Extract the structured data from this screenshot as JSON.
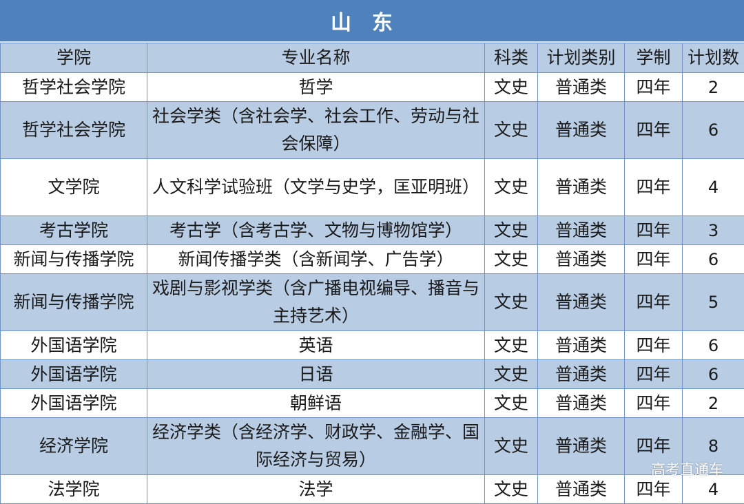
{
  "title": "山东",
  "headers": [
    "学院",
    "专业名称",
    "科类",
    "计划类别",
    "学制",
    "计划数"
  ],
  "rows": [
    {
      "college": "哲学社会学院",
      "major": "哲学",
      "category": "文史",
      "plan_type": "普通类",
      "duration": "四年",
      "count": "2",
      "tall": false
    },
    {
      "college": "哲学社会学院",
      "major": "社会学类（含社会学、社会工作、劳动与社会保障）",
      "category": "文史",
      "plan_type": "普通类",
      "duration": "四年",
      "count": "6",
      "tall": true
    },
    {
      "college": "文学院",
      "major": "人文科学试验班（文学与史学，匡亚明班）",
      "category": "文史",
      "plan_type": "普通类",
      "duration": "四年",
      "count": "4",
      "tall": true
    },
    {
      "college": "考古学院",
      "major": "考古学（含考古学、文物与博物馆学）",
      "category": "文史",
      "plan_type": "普通类",
      "duration": "四年",
      "count": "3",
      "tall": false
    },
    {
      "college": "新闻与传播学院",
      "major": "新闻传播学类（含新闻学、广告学）",
      "category": "文史",
      "plan_type": "普通类",
      "duration": "四年",
      "count": "6",
      "tall": false
    },
    {
      "college": "新闻与传播学院",
      "major": "戏剧与影视学类（含广播电视编导、播音与主持艺术）",
      "category": "文史",
      "plan_type": "普通类",
      "duration": "四年",
      "count": "5",
      "tall": true
    },
    {
      "college": "外国语学院",
      "major": "英语",
      "category": "文史",
      "plan_type": "普通类",
      "duration": "四年",
      "count": "6",
      "tall": false
    },
    {
      "college": "外国语学院",
      "major": "日语",
      "category": "文史",
      "plan_type": "普通类",
      "duration": "四年",
      "count": "6",
      "tall": false
    },
    {
      "college": "外国语学院",
      "major": "朝鲜语",
      "category": "文史",
      "plan_type": "普通类",
      "duration": "四年",
      "count": "2",
      "tall": false
    },
    {
      "college": "经济学院",
      "major": "经济学类（含经济学、财政学、金融学、国际经济与贸易）",
      "category": "文史",
      "plan_type": "普通类",
      "duration": "四年",
      "count": "8",
      "tall": true
    },
    {
      "college": "法学院",
      "major": "法学",
      "category": "文史",
      "plan_type": "普通类",
      "duration": "四年",
      "count": "4",
      "tall": false
    }
  ],
  "watermark": "高考直通车",
  "colors": {
    "title_bg": "#4f81bd",
    "band_bg": "#b8cce4",
    "border": "#6f93c4"
  }
}
